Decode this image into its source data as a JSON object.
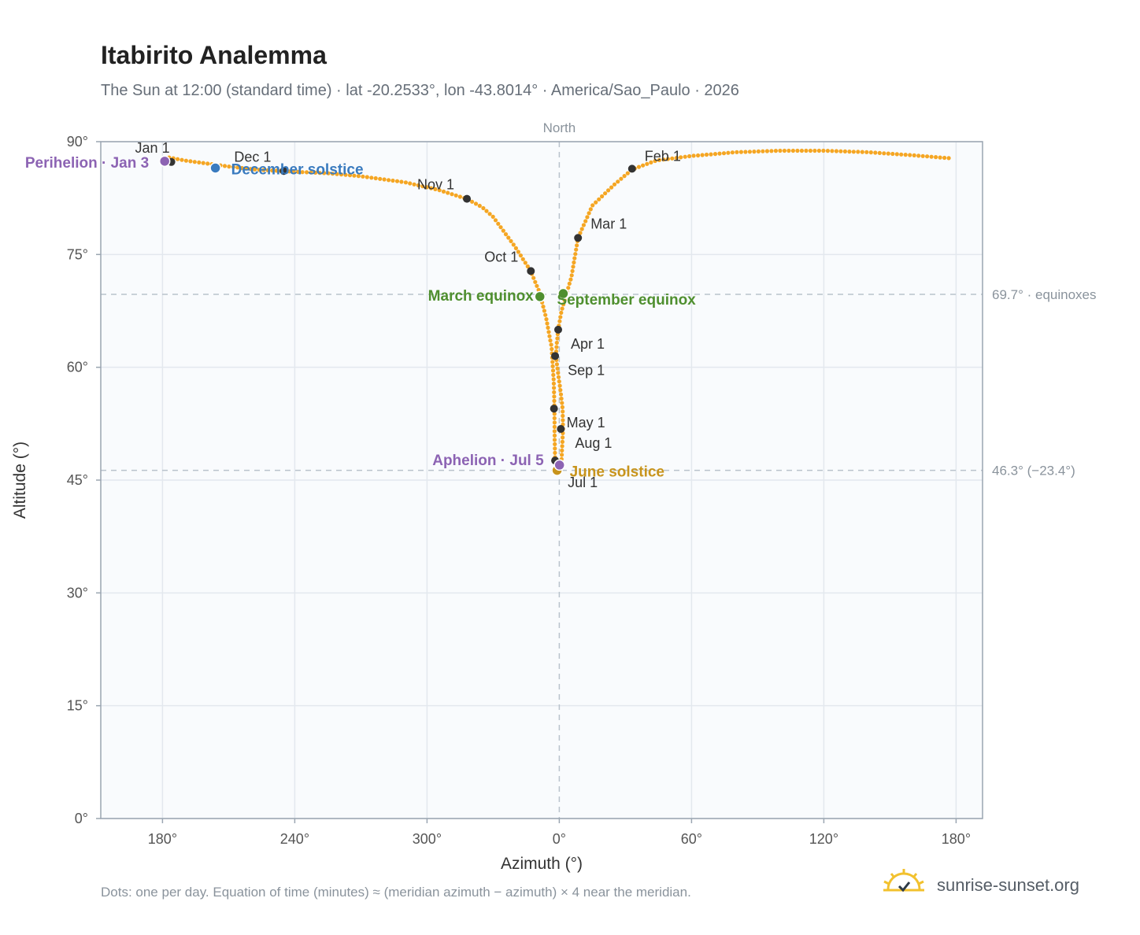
{
  "title": "Itabirito Analemma",
  "subtitle": "The Sun at 12:00 (standard time) · lat -20.2533°, lon -43.8014° · America/Sao_Paulo · 2026",
  "footnote": "Dots: one per day. Equation of time (minutes) ≈ (meridian azimuth − azimuth) × 4 near the meridian.",
  "brand": {
    "name": "sunrise-sunset.org",
    "logo_icon": "sun-logo-icon",
    "logo_color": "#f2c12e"
  },
  "colors": {
    "analemma": "#f5a623",
    "month_dot": "#333333",
    "equinox": "#4f8f2f",
    "june_solstice": "#c8941c",
    "december_solstice": "#3a7bbf",
    "apsis": "#8c63b3",
    "plot_bg": "#f9fbfd",
    "grid": "#e3e8ee",
    "axis": "#9aa5b1",
    "reference": "#b9c3cc"
  },
  "chart_data": {
    "type": "scatter",
    "xlabel": "Azimuth (°)",
    "ylabel": "Altitude (°)",
    "x_ticks": [
      "180°",
      "240°",
      "300°",
      "0°",
      "60°",
      "120°",
      "180°"
    ],
    "x_tick_values": [
      180,
      240,
      300,
      360,
      420,
      480,
      540
    ],
    "y_ticks": [
      "0°",
      "15°",
      "30°",
      "45°",
      "60°",
      "75°",
      "90°"
    ],
    "y_tick_values": [
      0,
      15,
      30,
      45,
      60,
      75,
      90
    ],
    "xlim": [
      152,
      552
    ],
    "ylim": [
      0,
      90
    ],
    "grid": true,
    "north_label": "North",
    "north_azimuth": 360,
    "reference_lines": [
      {
        "altitude": 69.7,
        "label": "69.7° · equinoxes"
      },
      {
        "altitude": 46.3,
        "label": "46.3° (−23.4°)"
      }
    ],
    "series": [
      {
        "role": "daily-path",
        "description": "one dot per day",
        "points": [
          [
            183,
            87.9
          ],
          [
            190,
            87.5
          ],
          [
            200,
            87.1
          ],
          [
            210,
            86.7
          ],
          [
            222,
            86.3
          ],
          [
            240,
            86.0
          ],
          [
            255,
            85.8
          ],
          [
            270,
            85.4
          ],
          [
            290,
            84.6
          ],
          [
            305,
            83.6
          ],
          [
            318,
            82.4
          ],
          [
            325,
            81.3
          ],
          [
            330,
            80.0
          ],
          [
            340,
            76.0
          ],
          [
            347,
            72.8
          ],
          [
            351,
            70.0
          ],
          [
            354,
            66.6
          ],
          [
            356.5,
            62.7
          ],
          [
            357.5,
            58.0
          ],
          [
            357.8,
            54.5
          ],
          [
            357.9,
            50.5
          ],
          [
            358.1,
            47.7
          ],
          [
            359.0,
            46.3
          ],
          [
            360.0,
            46.5
          ],
          [
            361.0,
            47.6
          ],
          [
            361.4,
            50.0
          ],
          [
            361.7,
            51.8
          ],
          [
            361.5,
            54.5
          ],
          [
            360.5,
            57.0
          ],
          [
            359.3,
            59.5
          ],
          [
            358.5,
            61.5
          ],
          [
            358.8,
            63.0
          ],
          [
            359.5,
            65.0
          ],
          [
            361.0,
            67.5
          ],
          [
            363.5,
            70.0
          ],
          [
            365.5,
            72.0
          ],
          [
            368.5,
            77.2
          ],
          [
            375,
            81.5
          ],
          [
            385,
            84.3
          ],
          [
            393,
            86.3
          ],
          [
            404,
            87.5
          ],
          [
            420,
            88.1
          ],
          [
            440,
            88.6
          ],
          [
            460,
            88.8
          ],
          [
            480,
            88.8
          ],
          [
            500,
            88.6
          ],
          [
            520,
            88.2
          ],
          [
            537,
            87.8
          ]
        ]
      }
    ],
    "month_markers": [
      {
        "label": "Jan 1",
        "az": 184,
        "alt": 87.3
      },
      {
        "label": "Feb 1",
        "az": 393,
        "alt": 86.4
      },
      {
        "label": "Mar 1",
        "az": 368.5,
        "alt": 77.2
      },
      {
        "label": "Apr 1",
        "az": 359.5,
        "alt": 65.0
      },
      {
        "label": "May 1",
        "az": 357.6,
        "alt": 54.5
      },
      {
        "label": "Jul 1",
        "az": 358.1,
        "alt": 47.6
      },
      {
        "label": "Aug 1",
        "az": 360.7,
        "alt": 51.8
      },
      {
        "label": "Sep 1",
        "az": 358.1,
        "alt": 61.5
      },
      {
        "label": "Oct 1",
        "az": 347.1,
        "alt": 72.8
      },
      {
        "label": "Nov 1",
        "az": 318.1,
        "alt": 82.4
      },
      {
        "label": "Dec 1",
        "az": 235,
        "alt": 86.1
      }
    ],
    "events": [
      {
        "label": "March equinox",
        "az": 351.2,
        "alt": 69.4,
        "kind": "equinox"
      },
      {
        "label": "September equinox",
        "az": 361.8,
        "alt": 69.8,
        "kind": "equinox"
      },
      {
        "label": "June solstice",
        "az": 359.0,
        "alt": 46.3,
        "kind": "june_solstice"
      },
      {
        "label": "December solstice",
        "az": 204,
        "alt": 86.5,
        "kind": "december_solstice"
      },
      {
        "label": "Perihelion · Jan 3",
        "az": 181,
        "alt": 87.4,
        "kind": "apsis"
      },
      {
        "label": "Aphelion · Jul 5",
        "az": 360.1,
        "alt": 47.0,
        "kind": "apsis"
      }
    ]
  }
}
